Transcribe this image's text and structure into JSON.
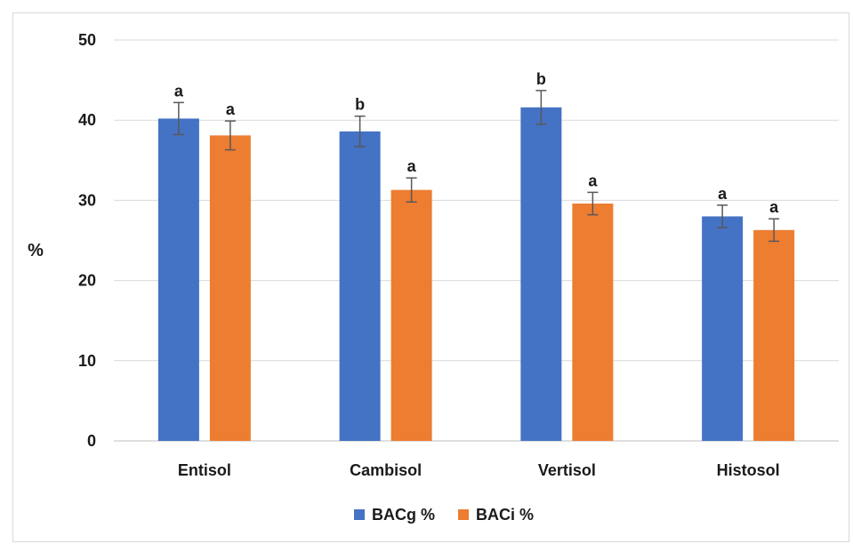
{
  "chart_data": {
    "type": "bar",
    "categories": [
      "Entisol",
      "Cambisol",
      "Vertisol",
      "Histosol"
    ],
    "series": [
      {
        "name": "BACg %",
        "color": "#4472c4",
        "values": [
          40.2,
          38.6,
          41.6,
          28.0
        ],
        "errors": [
          2.0,
          1.9,
          2.1,
          1.4
        ],
        "letters": [
          "a",
          "b",
          "b",
          "a"
        ]
      },
      {
        "name": "BACi %",
        "color": "#ed7d31",
        "values": [
          38.1,
          31.3,
          29.6,
          26.3
        ],
        "errors": [
          1.8,
          1.5,
          1.4,
          1.4
        ],
        "letters": [
          "a",
          "a",
          "a",
          "a"
        ]
      }
    ],
    "ylabel": "%",
    "xlabel": "",
    "ylim": [
      0,
      50
    ],
    "yticks": [
      "0",
      "10",
      "20",
      "30",
      "40",
      "50"
    ],
    "grid": true,
    "legend_position": "bottom"
  }
}
